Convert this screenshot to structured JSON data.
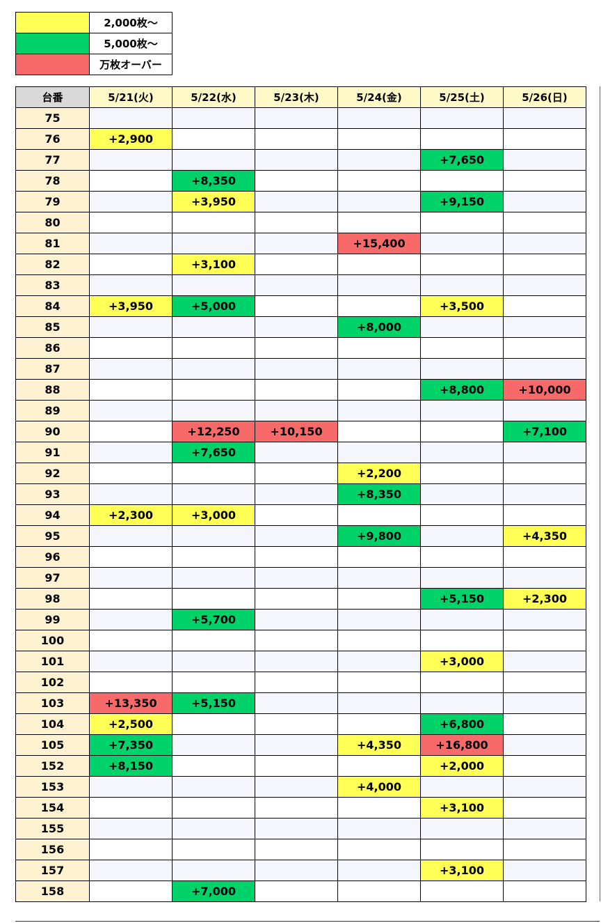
{
  "legend": [
    {
      "label": "2,000枚〜",
      "color": "#ffff55"
    },
    {
      "label": "5,000枚〜",
      "color": "#00d26a"
    },
    {
      "label": "万枚オーバー",
      "color": "#f86a6a"
    }
  ],
  "table": {
    "header": [
      "台番",
      "5/21(火)",
      "5/22(水)",
      "5/23(木)",
      "5/24(金)",
      "5/25(土)",
      "5/26(日)"
    ],
    "rows": [
      {
        "id": "75",
        "cells": [
          null,
          null,
          null,
          null,
          null,
          null
        ]
      },
      {
        "id": "76",
        "cells": [
          {
            "text": "+2,900",
            "color": "#ffff55"
          },
          null,
          null,
          null,
          null,
          null
        ]
      },
      {
        "id": "77",
        "cells": [
          null,
          null,
          null,
          null,
          {
            "text": "+7,650",
            "color": "#00d26a"
          },
          null
        ]
      },
      {
        "id": "78",
        "cells": [
          null,
          {
            "text": "+8,350",
            "color": "#00d26a"
          },
          null,
          null,
          null,
          null
        ]
      },
      {
        "id": "79",
        "cells": [
          null,
          {
            "text": "+3,950",
            "color": "#ffff55"
          },
          null,
          null,
          {
            "text": "+9,150",
            "color": "#00d26a"
          },
          null
        ]
      },
      {
        "id": "80",
        "cells": [
          null,
          null,
          null,
          null,
          null,
          null
        ]
      },
      {
        "id": "81",
        "cells": [
          null,
          null,
          null,
          {
            "text": "+15,400",
            "color": "#f86a6a"
          },
          null,
          null
        ]
      },
      {
        "id": "82",
        "cells": [
          null,
          {
            "text": "+3,100",
            "color": "#ffff55"
          },
          null,
          null,
          null,
          null
        ]
      },
      {
        "id": "83",
        "cells": [
          null,
          null,
          null,
          null,
          null,
          null
        ]
      },
      {
        "id": "84",
        "cells": [
          {
            "text": "+3,950",
            "color": "#ffff55"
          },
          {
            "text": "+5,000",
            "color": "#00d26a"
          },
          null,
          null,
          {
            "text": "+3,500",
            "color": "#ffff55"
          },
          null
        ]
      },
      {
        "id": "85",
        "cells": [
          null,
          null,
          null,
          {
            "text": "+8,000",
            "color": "#00d26a"
          },
          null,
          null
        ]
      },
      {
        "id": "86",
        "cells": [
          null,
          null,
          null,
          null,
          null,
          null
        ]
      },
      {
        "id": "87",
        "cells": [
          null,
          null,
          null,
          null,
          null,
          null
        ]
      },
      {
        "id": "88",
        "cells": [
          null,
          null,
          null,
          null,
          {
            "text": "+8,800",
            "color": "#00d26a"
          },
          {
            "text": "+10,000",
            "color": "#f86a6a"
          }
        ]
      },
      {
        "id": "89",
        "cells": [
          null,
          null,
          null,
          null,
          null,
          null
        ]
      },
      {
        "id": "90",
        "cells": [
          null,
          {
            "text": "+12,250",
            "color": "#f86a6a"
          },
          {
            "text": "+10,150",
            "color": "#f86a6a"
          },
          null,
          null,
          {
            "text": "+7,100",
            "color": "#00d26a"
          }
        ]
      },
      {
        "id": "91",
        "cells": [
          null,
          {
            "text": "+7,650",
            "color": "#00d26a"
          },
          null,
          null,
          null,
          null
        ]
      },
      {
        "id": "92",
        "cells": [
          null,
          null,
          null,
          {
            "text": "+2,200",
            "color": "#ffff55"
          },
          null,
          null
        ]
      },
      {
        "id": "93",
        "cells": [
          null,
          null,
          null,
          {
            "text": "+8,350",
            "color": "#00d26a"
          },
          null,
          null
        ]
      },
      {
        "id": "94",
        "cells": [
          {
            "text": "+2,300",
            "color": "#ffff55"
          },
          {
            "text": "+3,000",
            "color": "#ffff55"
          },
          null,
          null,
          null,
          null
        ]
      },
      {
        "id": "95",
        "cells": [
          null,
          null,
          null,
          {
            "text": "+9,800",
            "color": "#00d26a"
          },
          null,
          {
            "text": "+4,350",
            "color": "#ffff55"
          }
        ]
      },
      {
        "id": "96",
        "cells": [
          null,
          null,
          null,
          null,
          null,
          null
        ]
      },
      {
        "id": "97",
        "cells": [
          null,
          null,
          null,
          null,
          null,
          null
        ]
      },
      {
        "id": "98",
        "cells": [
          null,
          null,
          null,
          null,
          {
            "text": "+5,150",
            "color": "#00d26a"
          },
          {
            "text": "+2,300",
            "color": "#ffff55"
          }
        ]
      },
      {
        "id": "99",
        "cells": [
          null,
          {
            "text": "+5,700",
            "color": "#00d26a"
          },
          null,
          null,
          null,
          null
        ]
      },
      {
        "id": "100",
        "cells": [
          null,
          null,
          null,
          null,
          null,
          null
        ]
      },
      {
        "id": "101",
        "cells": [
          null,
          null,
          null,
          null,
          {
            "text": "+3,000",
            "color": "#ffff55"
          },
          null
        ]
      },
      {
        "id": "102",
        "cells": [
          null,
          null,
          null,
          null,
          null,
          null
        ]
      },
      {
        "id": "103",
        "cells": [
          {
            "text": "+13,350",
            "color": "#f86a6a"
          },
          {
            "text": "+5,150",
            "color": "#00d26a"
          },
          null,
          null,
          null,
          null
        ]
      },
      {
        "id": "104",
        "cells": [
          {
            "text": "+2,500",
            "color": "#ffff55"
          },
          null,
          null,
          null,
          {
            "text": "+6,800",
            "color": "#00d26a"
          },
          null
        ]
      },
      {
        "id": "105",
        "cells": [
          {
            "text": "+7,350",
            "color": "#00d26a"
          },
          null,
          null,
          {
            "text": "+4,350",
            "color": "#ffff55"
          },
          {
            "text": "+16,800",
            "color": "#f86a6a"
          },
          null
        ]
      },
      {
        "id": "152",
        "cells": [
          {
            "text": "+8,150",
            "color": "#00d26a"
          },
          null,
          null,
          null,
          {
            "text": "+2,000",
            "color": "#ffff55"
          },
          null
        ]
      },
      {
        "id": "153",
        "cells": [
          null,
          null,
          null,
          {
            "text": "+4,000",
            "color": "#ffff55"
          },
          null,
          null
        ]
      },
      {
        "id": "154",
        "cells": [
          null,
          null,
          null,
          null,
          {
            "text": "+3,100",
            "color": "#ffff55"
          },
          null
        ]
      },
      {
        "id": "155",
        "cells": [
          null,
          null,
          null,
          null,
          null,
          null
        ]
      },
      {
        "id": "156",
        "cells": [
          null,
          null,
          null,
          null,
          null,
          null
        ]
      },
      {
        "id": "157",
        "cells": [
          null,
          null,
          null,
          null,
          {
            "text": "+3,100",
            "color": "#ffff55"
          },
          null
        ]
      },
      {
        "id": "158",
        "cells": [
          null,
          {
            "text": "+7,000",
            "color": "#00d26a"
          },
          null,
          null,
          null,
          null
        ]
      }
    ]
  }
}
